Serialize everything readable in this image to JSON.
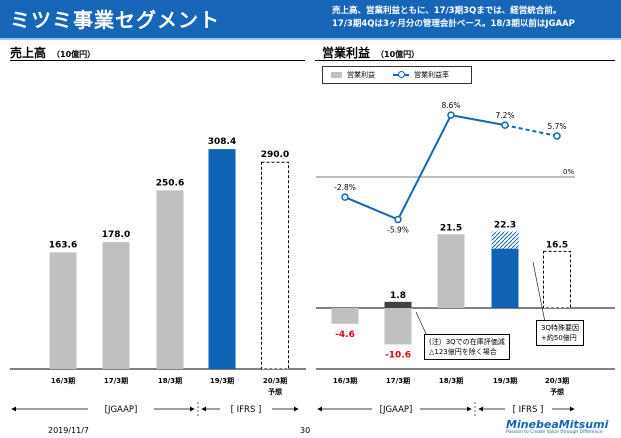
{
  "header": {
    "title": "ミツミ事業セグメント",
    "note_line1": "売上高、営業利益ともに、17/3期3Qまでは、経営統合前。",
    "note_line2": "17/3期4Qは3ヶ月分の管理会計ベース。18/3期以前はJGAAP"
  },
  "sales_panel": {
    "title": "売上高",
    "unit": "（10億円）"
  },
  "profit_panel": {
    "title": "営業利益",
    "unit": "（10億円）",
    "legend_bar": "営業利益",
    "legend_line": "営業利益率",
    "zero_label": "0%",
    "note_left_line1": "(注）3Qでの在庫評価減",
    "note_left_line2": "△123億円を除く場合",
    "note_right_line1": "3Q特殊要因",
    "note_right_line2": "+約50億円"
  },
  "chart_data": [
    {
      "type": "bar",
      "title": "売上高",
      "unit": "10億円",
      "categories": [
        "16/3期",
        "17/3期",
        "18/3期",
        "19/3期",
        "20/3期"
      ],
      "values": [
        163.6,
        178.0,
        250.6,
        308.4,
        290.0
      ],
      "value_labels": [
        "163.6",
        "178.0",
        "250.6",
        "308.4",
        "290.0"
      ],
      "forecast_label": "予想",
      "colors": {
        "actual": "#c0c0c0",
        "highlight": "#0f62b4",
        "forecast_border": "#000000"
      }
    },
    {
      "type": "bar",
      "title": "営業利益",
      "unit": "10億円",
      "categories": [
        "16/3期",
        "17/3期",
        "18/3期",
        "19/3期",
        "20/3期"
      ],
      "series": [
        {
          "name": "営業利益",
          "values": [
            -4.6,
            -10.6,
            21.5,
            22.3,
            16.5
          ],
          "labels": [
            "-4.6",
            "-10.6",
            "21.5",
            "22.3",
            "16.5"
          ]
        },
        {
          "name": "営業利益率",
          "values": [
            -2.8,
            -5.9,
            8.6,
            7.2,
            5.7
          ],
          "labels": [
            "-2.8%",
            "-5.9%",
            "8.6%",
            "7.2%",
            "5.7%"
          ]
        }
      ],
      "adjusted_17_3": {
        "value": 1.8,
        "label": "1.8"
      },
      "special_19_3": 5.0,
      "forecast_label": "予想"
    }
  ],
  "bands": {
    "jgaap": "[JGAAP]",
    "ifrs": "[ IFRS ]"
  },
  "footer": {
    "date": "2019/11/7",
    "page": "30",
    "brand": "MinebeaMitsumi",
    "tagline": "Passion to Create Value through Difference"
  }
}
